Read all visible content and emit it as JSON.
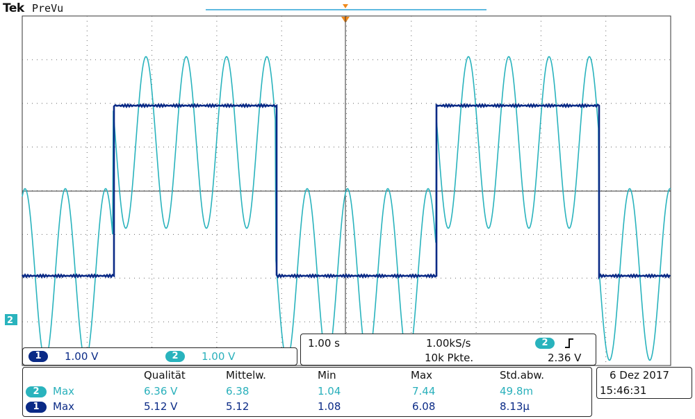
{
  "header": {
    "brand": "Tek",
    "mode": "PreVu"
  },
  "colors": {
    "ch1": "#0a2a86",
    "ch2": "#29b3bd",
    "trigger": "#f08a1c",
    "grid": "#444444"
  },
  "channels": {
    "ch1": {
      "id": "1",
      "scale": "1.00 V"
    },
    "ch2": {
      "id": "2",
      "scale": "1.00 V"
    },
    "ch2_ground_marker": "2"
  },
  "timebase": {
    "time_div": "1.00 s",
    "sample_rate": "1.00kS/s",
    "record_length": "10k Pkte.",
    "trigger_source": "2",
    "trigger_slope_icon": "rising-edge-icon",
    "trigger_level": "2.36 V"
  },
  "measurements": {
    "headers": [
      "Qualität",
      "Mittelw.",
      "Min",
      "Max",
      "Std.abw."
    ],
    "rows": [
      {
        "ch": "2",
        "label": "Max",
        "values": [
          "6.36 V",
          "6.38",
          "1.04",
          "7.44",
          "49.8m"
        ]
      },
      {
        "ch": "1",
        "label": "Max",
        "values": [
          "5.12 V",
          "5.12",
          "1.08",
          "6.08",
          "8.13μ"
        ]
      }
    ]
  },
  "datetime": {
    "date": "6 Dez 2017",
    "time": "15:46:31"
  }
}
